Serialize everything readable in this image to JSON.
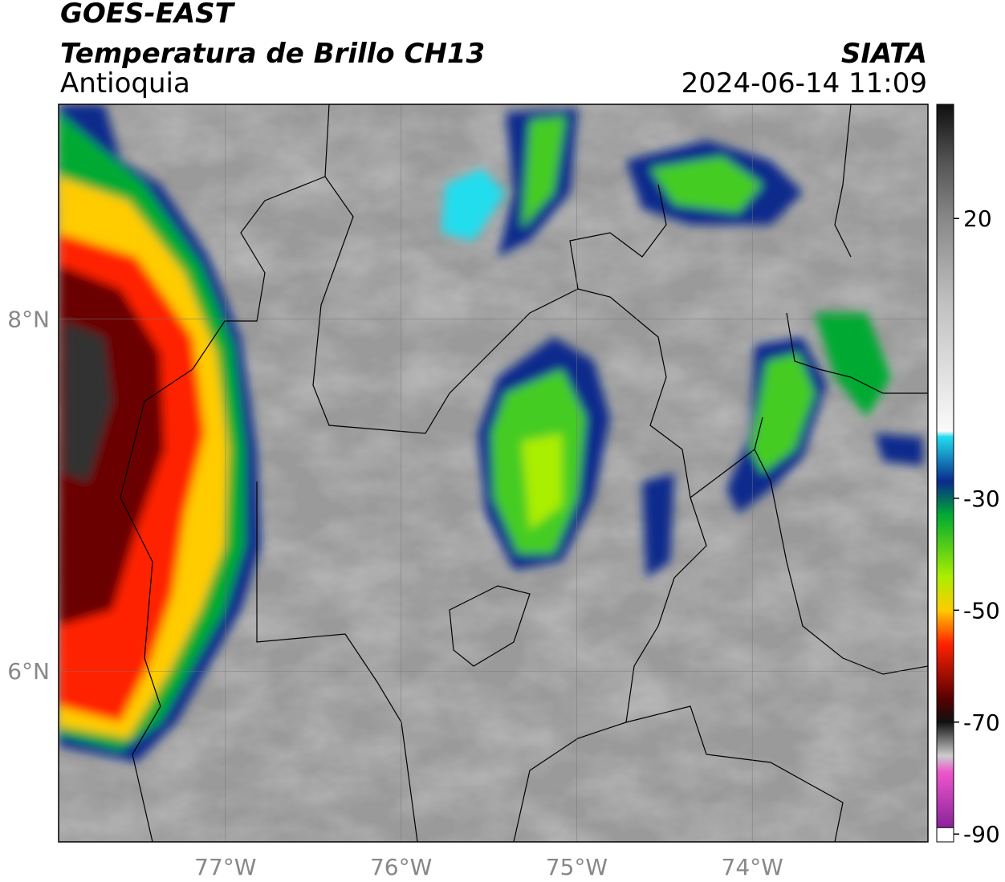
{
  "header": {
    "title": "GOES-EAST",
    "subtitle": "Temperatura de Brillo CH13",
    "region": "Antioquia",
    "agency": "SIATA",
    "timestamp": "2024-06-14 11:09"
  },
  "map": {
    "xlim": [
      -77.95,
      -73.0
    ],
    "ylim": [
      5.03,
      9.22
    ],
    "xticks": [
      {
        "value": -77,
        "label": "77°W"
      },
      {
        "value": -76,
        "label": "76°W"
      },
      {
        "value": -75,
        "label": "75°W"
      },
      {
        "value": -74,
        "label": "74°W"
      }
    ],
    "yticks": [
      {
        "value": 6,
        "label": "6°N"
      },
      {
        "value": 8,
        "label": "8°N"
      }
    ],
    "grid": true
  },
  "colorbar": {
    "lim": [
      -91.4,
      40.4
    ],
    "ticks": [
      20,
      -30,
      -50,
      -70,
      -90
    ],
    "stops": [
      {
        "value": 40,
        "color": "#111111"
      },
      {
        "value": 30,
        "color": "#555555"
      },
      {
        "value": 20,
        "color": "#888888"
      },
      {
        "value": 5,
        "color": "#c0c0c0"
      },
      {
        "value": -18,
        "color": "#fafafa"
      },
      {
        "value": -19,
        "color": "#22ddee"
      },
      {
        "value": -27,
        "color": "#0a2a8c"
      },
      {
        "value": -33,
        "color": "#00aa33"
      },
      {
        "value": -44,
        "color": "#aaee00"
      },
      {
        "value": -50,
        "color": "#ffcc00"
      },
      {
        "value": -56,
        "color": "#ff2200"
      },
      {
        "value": -66,
        "color": "#550000"
      },
      {
        "value": -70,
        "color": "#111111"
      },
      {
        "value": -76,
        "color": "#cccccc"
      },
      {
        "value": -79,
        "color": "#ee55cc"
      },
      {
        "value": -89,
        "color": "#882299"
      }
    ]
  }
}
